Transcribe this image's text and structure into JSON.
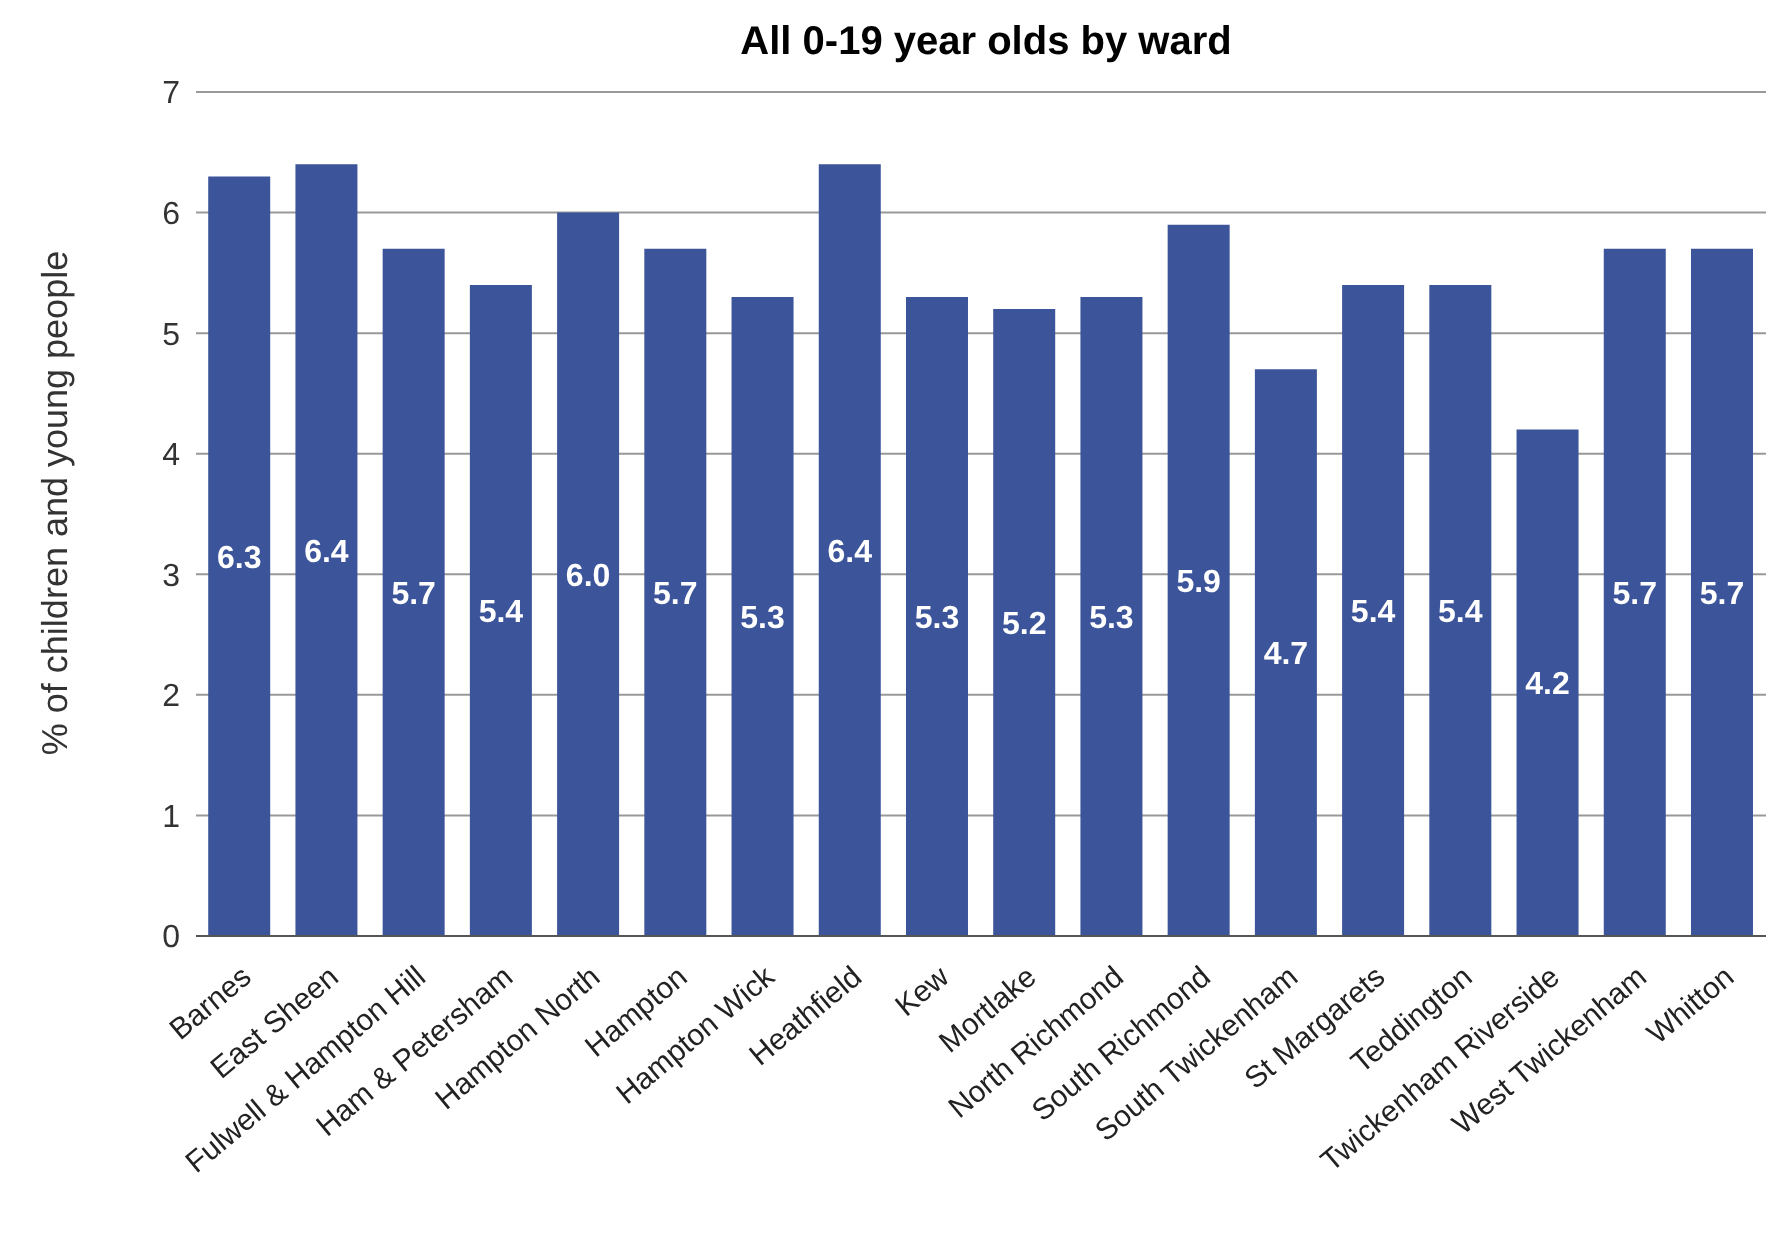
{
  "chart_data": {
    "type": "bar",
    "title": "All 0-19 year olds by ward",
    "ylabel": "% of children and young people",
    "categories": [
      "Barnes",
      "East Sheen",
      "Fulwell & Hampton Hill",
      "Ham & Petersham",
      "Hampton North",
      "Hampton",
      "Hampton Wick",
      "Heathfield",
      "Kew",
      "Mortlake",
      "North Richmond",
      "South Richmond",
      "South Twickenham",
      "St Margarets",
      "Teddington",
      "Twickenham Riverside",
      "West Twickenham",
      "Whitton"
    ],
    "values": [
      6.3,
      6.4,
      5.7,
      5.4,
      6.0,
      5.7,
      5.3,
      6.4,
      5.3,
      5.2,
      5.3,
      5.9,
      4.7,
      5.4,
      5.4,
      4.2,
      5.7,
      5.7
    ],
    "value_labels": [
      "6.3",
      "6.4",
      "5.7",
      "5.4",
      "6.0",
      "5.7",
      "5.3",
      "6.4",
      "5.3",
      "5.2",
      "5.3",
      "5.9",
      "4.7",
      "5.4",
      "5.4",
      "4.2",
      "5.7",
      "5.7"
    ],
    "color": "#3c5499",
    "ylim": [
      0,
      7
    ],
    "yticks": [
      0,
      1,
      2,
      3,
      4,
      5,
      6,
      7
    ],
    "grid": "y"
  }
}
